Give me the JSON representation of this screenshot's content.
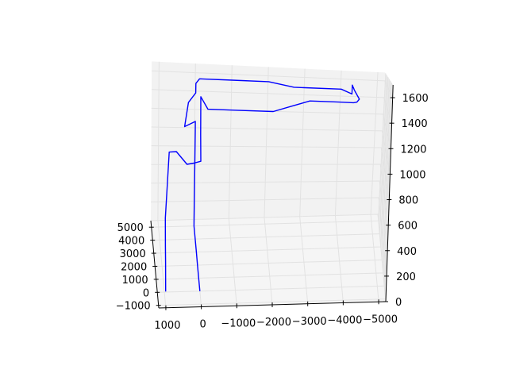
{
  "chart_data": {
    "type": "line",
    "projection": "3d",
    "title": "",
    "xlabel": "",
    "ylabel": "",
    "zlabel": "",
    "grid": true,
    "pane_color": "#f2f2f2",
    "x_axis": {
      "ticks": [
        1000,
        0,
        -1000,
        -2000,
        -3000,
        -4000,
        -5000
      ],
      "tick_labels": [
        "1000",
        "0",
        "−1000",
        "−2000",
        "−3000",
        "−4000",
        "−5000"
      ],
      "range": [
        1200,
        -5200
      ]
    },
    "y_axis": {
      "ticks": [
        -1000,
        0,
        1000,
        2000,
        3000,
        4000,
        5000
      ],
      "tick_labels": [
        "−1000",
        "0",
        "1000",
        "2000",
        "3000",
        "4000",
        "5000"
      ],
      "range": [
        -1200,
        5500
      ]
    },
    "z_axis": {
      "ticks": [
        0,
        200,
        400,
        600,
        800,
        1000,
        1200,
        1400,
        1600
      ],
      "tick_labels": [
        "0",
        "200",
        "400",
        "600",
        "800",
        "1000",
        "1200",
        "1400",
        "1600"
      ],
      "range": [
        0,
        1700
      ]
    },
    "series": [
      {
        "color": "#0000ff",
        "points": [
          [
            0,
            0,
            0
          ],
          [
            0,
            1000,
            0
          ],
          [
            0,
            2000,
            0
          ],
          [
            0,
            3000,
            0
          ],
          [
            0,
            4000,
            0
          ],
          [
            0,
            5000,
            0
          ],
          [
            0,
            5000,
            1000
          ],
          [
            0,
            5000,
            1100
          ],
          [
            300,
            4900,
            1050
          ],
          [
            200,
            4950,
            1300
          ],
          [
            0,
            5000,
            1400
          ],
          [
            0,
            5000,
            1500
          ],
          [
            -100,
            5000,
            1550
          ],
          [
            -1000,
            5000,
            1550
          ],
          [
            -2000,
            5000,
            1550
          ],
          [
            -2700,
            5000,
            1500
          ],
          [
            -3000,
            5000,
            1500
          ],
          [
            -4000,
            5000,
            1500
          ],
          [
            -4300,
            5000,
            1450
          ],
          [
            -4300,
            5000,
            1550
          ],
          [
            -4300,
            4500,
            1550
          ],
          [
            -4300,
            4000,
            1550
          ],
          [
            -4300,
            3500,
            1550
          ],
          [
            -4300,
            3000,
            1550
          ],
          [
            -4400,
            2000,
            1500
          ],
          [
            -4300,
            1000,
            1500
          ],
          [
            -4200,
            800,
            1500
          ],
          [
            -3800,
            800,
            1500
          ],
          [
            -3000,
            800,
            1500
          ],
          [
            -2500,
            800,
            1450
          ],
          [
            -2000,
            800,
            1400
          ],
          [
            -1000,
            800,
            1400
          ],
          [
            -200,
            800,
            1400
          ],
          [
            0,
            800,
            1500
          ],
          [
            0,
            600,
            1200
          ],
          [
            0,
            300,
            1000
          ],
          [
            200,
            0,
            1000
          ],
          [
            400,
            -200,
            1000
          ],
          [
            700,
            -300,
            1100
          ],
          [
            900,
            -400,
            1100
          ],
          [
            1000,
            -400,
            600
          ],
          [
            1000,
            -600,
            400
          ],
          [
            1000,
            -800,
            300
          ],
          [
            1000,
            -1000,
            100
          ]
        ]
      }
    ]
  }
}
